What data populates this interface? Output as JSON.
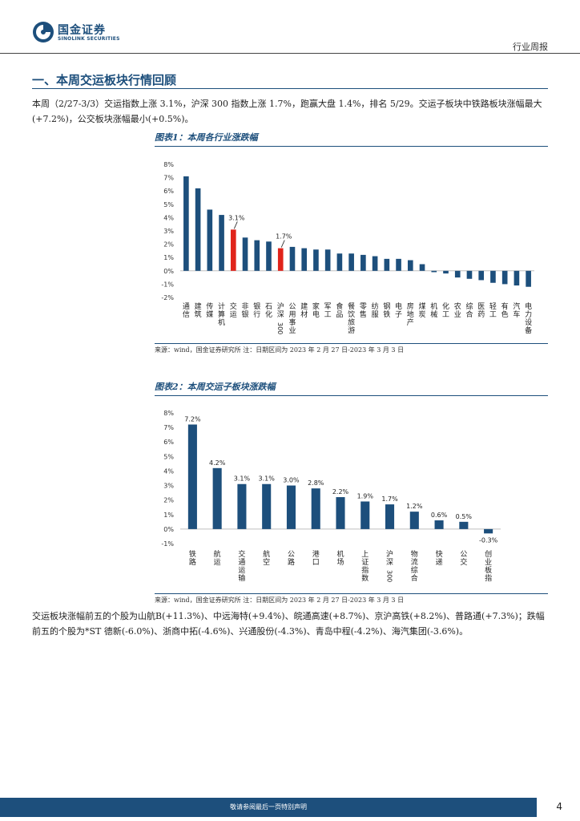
{
  "header": {
    "brand_cn": "国金证券",
    "brand_en": "SINOLINK SECURITIES",
    "report_type": "行业周报",
    "colors": {
      "brand": "#1d4f7c",
      "highlight": "#e0241b"
    }
  },
  "section": {
    "title": "一、本周交运板块行情回顾"
  },
  "intro": {
    "text": "本周（2/27-3/3）交运指数上涨 3.1%，沪深 300 指数上涨 1.7%，跑赢大盘 1.4%，排名 5/29。交运子板块中铁路板块涨幅最大(+7.2%)，公交板块涨幅最小(+0.5%)。"
  },
  "figure1": {
    "title": "图表1：本周各行业涨跌幅",
    "source": "来源：wind，国金证券研究所    注：日期区间为 2023 年 2 月 27 日-2023 年 3 月 3 日"
  },
  "figure2": {
    "title": "图表2：本周交运子板块涨跌幅",
    "source": "来源：wind，国金证券研究所    注：日期区间为 2023 年 2 月 27 日-2023 年 3 月 3 日"
  },
  "summary": {
    "text": "交运板块涨幅前五的个股为山航B(+11.3%)、中远海特(+9.4%)、皖通高速(+8.7%)、京沪高铁(+8.2%)、普路通(+7.3%)；跌幅前五的个股为*ST 德新(-6.0%)、浙商中拓(-4.6%)、兴通股份(-4.3%)、青岛中程(-4.2%)、海汽集团(-3.6%)。"
  },
  "footer": {
    "disclaimer": "敬请参阅最后一页特别声明",
    "page": "4"
  },
  "chart_data": [
    {
      "type": "bar",
      "title": "本周各行业涨跌幅",
      "categories": [
        "通信",
        "建筑",
        "传媒",
        "计算机",
        "交运",
        "非银",
        "银行",
        "石化",
        "沪深300",
        "公用事业",
        "建材",
        "家电",
        "军工",
        "食品",
        "餐饮旅游",
        "零售",
        "纺服",
        "钢铁",
        "电子",
        "房地产",
        "煤炭",
        "机械",
        "化工",
        "农业",
        "综合",
        "医药",
        "轻工",
        "有色",
        "汽车",
        "电力设备"
      ],
      "values": [
        7.1,
        6.2,
        4.6,
        4.2,
        3.1,
        2.5,
        2.3,
        2.2,
        1.7,
        1.8,
        1.7,
        1.6,
        1.6,
        1.3,
        1.3,
        1.2,
        1.1,
        0.9,
        0.9,
        0.8,
        0.5,
        -0.1,
        -0.2,
        -0.5,
        -0.6,
        -0.7,
        -0.9,
        -1.0,
        -1.1,
        -1.2
      ],
      "highlight": [
        "交运",
        "沪深300"
      ],
      "data_labels": {
        "交运": "3.1%",
        "沪深300": "1.7%"
      },
      "ylim": [
        -2,
        8
      ],
      "yticks": [
        "-2%",
        "-1%",
        "0%",
        "1%",
        "2%",
        "3%",
        "4%",
        "5%",
        "6%",
        "7%",
        "8%"
      ],
      "xlabel": "",
      "ylabel": ""
    },
    {
      "type": "bar",
      "title": "本周交运子板块涨跌幅",
      "categories": [
        "铁路",
        "航运",
        "交通运输",
        "航空",
        "公路",
        "港口",
        "机场",
        "上证指数",
        "沪深300",
        "物流综合",
        "快递",
        "公交",
        "创业板指"
      ],
      "values": [
        7.2,
        4.2,
        3.1,
        3.1,
        3.0,
        2.8,
        2.2,
        1.9,
        1.7,
        1.2,
        0.6,
        0.5,
        -0.3
      ],
      "labels": [
        "7.2%",
        "4.2%",
        "3.1%",
        "3.1%",
        "3.0%",
        "2.8%",
        "2.2%",
        "1.9%",
        "1.7%",
        "1.2%",
        "0.6%",
        "0.5%",
        "-0.3%"
      ],
      "ylim": [
        -1,
        8
      ],
      "yticks": [
        "-1%",
        "0%",
        "1%",
        "2%",
        "3%",
        "4%",
        "5%",
        "6%",
        "7%",
        "8%"
      ],
      "xlabel": "",
      "ylabel": ""
    }
  ]
}
